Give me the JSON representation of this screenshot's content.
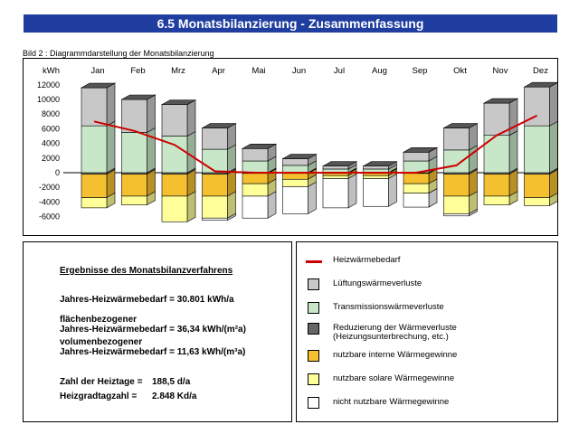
{
  "header": {
    "title": "6.5 Monatsbilanzierung - Zusammenfassung"
  },
  "caption": "Bild 2 : Diagrammdarstellung der Monatsbilanzierung",
  "chart_data": {
    "type": "bar",
    "stacked": true,
    "title": "",
    "ylabel": "kWh",
    "ylim": [
      -7500,
      12500
    ],
    "yticks": [
      -6000,
      -4000,
      -2000,
      0,
      2000,
      4000,
      6000,
      8000,
      10000
    ],
    "ytick_labels": [
      "-6000",
      "-4000",
      "-2000",
      "0",
      "2000",
      "4000",
      "6000",
      "8000",
      "10000"
    ],
    "ytop_label": "12000",
    "categories": [
      "Jan",
      "Feb",
      "Mrz",
      "Apr",
      "Mai",
      "Jun",
      "Jul",
      "Aug",
      "Sep",
      "Okt",
      "Nov",
      "Dez"
    ],
    "loss_series": [
      {
        "name": "Transmissionswärmeverluste",
        "color": "#c8e6c8",
        "values": [
          6400,
          5500,
          5000,
          3200,
          1600,
          1000,
          500,
          500,
          1600,
          3100,
          5100,
          6400
        ]
      },
      {
        "name": "Lüftungswärmeverluste",
        "color": "#c8c8c8",
        "values": [
          5200,
          4500,
          4300,
          2900,
          1700,
          900,
          400,
          400,
          1200,
          3000,
          4400,
          5300
        ]
      }
    ],
    "gain_series": [
      {
        "name": "Reduzierung der Wärmeverluste (Heizungsunterbrechung, etc.)",
        "color": "#888888",
        "values": [
          -200,
          -200,
          -200,
          -200,
          -100,
          -100,
          -100,
          -100,
          -100,
          -200,
          -200,
          -200
        ]
      },
      {
        "name": "nutzbare interne Wärmegewinne",
        "color": "#f5c030",
        "values": [
          -3200,
          -3000,
          -3000,
          -3000,
          -1400,
          -800,
          -300,
          -300,
          -1400,
          -3000,
          -3000,
          -3200
        ]
      },
      {
        "name": "nutzbare solare Wärmegewinne",
        "color": "#ffff99",
        "values": [
          -1400,
          -1200,
          -3500,
          -3000,
          -1700,
          -1000,
          -400,
          -400,
          -1300,
          -2400,
          -1200,
          -1100
        ]
      },
      {
        "name": "nicht nutzbare Wärmegewinne",
        "color": "#ffffff",
        "values": [
          0,
          0,
          0,
          -300,
          -3000,
          -3700,
          -4000,
          -3800,
          -1900,
          -300,
          0,
          0
        ]
      }
    ],
    "line_series": {
      "name": "Heizwärmebedarf",
      "color": "#cc0000",
      "values": [
        7000,
        5700,
        3800,
        200,
        0,
        0,
        0,
        0,
        0,
        1000,
        5100,
        7800
      ]
    },
    "grid": false,
    "legend_position": "bottom-right (separate panel)"
  },
  "results": {
    "title": "Ergebnisse des Monatsbilanzverfahrens",
    "annual_demand": "Jahres-Heizwärmebedarf = 30.801 kWh/a",
    "area_label": "flächenbezogener",
    "area_value": "Jahres-Heizwärmebedarf = 36,34 kWh/(m²a)",
    "volume_label": "volumenbezogener",
    "volume_value": "Jahres-Heizwärmebedarf = 11,63 kWh/(m³a)",
    "heating_days_label": "Zahl der Heiztage =",
    "heating_days_value": "188,5 d/a",
    "degree_days_label": "Heizgradtagzahl =",
    "degree_days_value": "2.848 Kd/a"
  },
  "legend": {
    "line_label": "Heizwärmebedarf",
    "items": [
      {
        "label": "Lüftungswärmeverluste",
        "label2": "",
        "color": "#c8c8c8"
      },
      {
        "label": "Transmissionswärmeverluste",
        "label2": "",
        "color": "#c8e6c8"
      },
      {
        "label": "Reduzierung der Wärmeverluste",
        "label2": "(Heizungsunterbrechung, etc.)",
        "color": "#666666"
      },
      {
        "label": "nutzbare interne Wärmegewinne",
        "label2": "",
        "color": "#f5c030"
      },
      {
        "label": "nutzbare solare Wärmegewinne",
        "label2": "",
        "color": "#ffff99"
      },
      {
        "label": "nicht nutzbare Wärmegewinne",
        "label2": "",
        "color": "#ffffff"
      }
    ]
  }
}
